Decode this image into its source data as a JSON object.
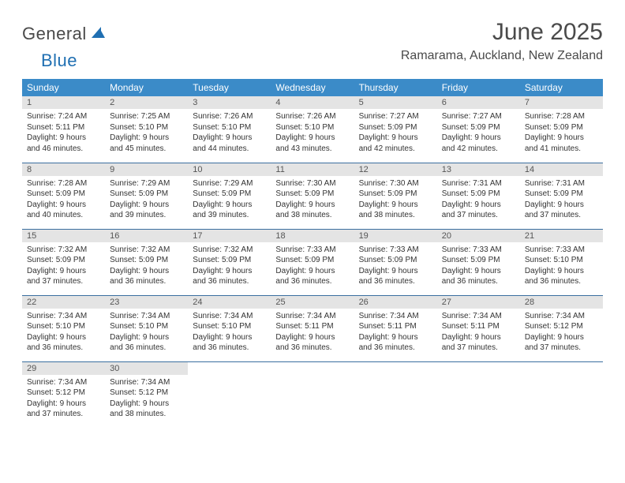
{
  "logo": {
    "text1": "General",
    "text2": "Blue",
    "shape_color": "#1f6fb2"
  },
  "title": "June 2025",
  "location": "Ramarama, Auckland, New Zealand",
  "header_bg": "#3b8bc8",
  "header_fg": "#ffffff",
  "daynum_bg": "#e4e4e4",
  "row_border": "#3b6fa0",
  "weekdays": [
    "Sunday",
    "Monday",
    "Tuesday",
    "Wednesday",
    "Thursday",
    "Friday",
    "Saturday"
  ],
  "weeks": [
    [
      {
        "n": "1",
        "sr": "7:24 AM",
        "ss": "5:11 PM",
        "dl": "9 hours and 46 minutes."
      },
      {
        "n": "2",
        "sr": "7:25 AM",
        "ss": "5:10 PM",
        "dl": "9 hours and 45 minutes."
      },
      {
        "n": "3",
        "sr": "7:26 AM",
        "ss": "5:10 PM",
        "dl": "9 hours and 44 minutes."
      },
      {
        "n": "4",
        "sr": "7:26 AM",
        "ss": "5:10 PM",
        "dl": "9 hours and 43 minutes."
      },
      {
        "n": "5",
        "sr": "7:27 AM",
        "ss": "5:09 PM",
        "dl": "9 hours and 42 minutes."
      },
      {
        "n": "6",
        "sr": "7:27 AM",
        "ss": "5:09 PM",
        "dl": "9 hours and 42 minutes."
      },
      {
        "n": "7",
        "sr": "7:28 AM",
        "ss": "5:09 PM",
        "dl": "9 hours and 41 minutes."
      }
    ],
    [
      {
        "n": "8",
        "sr": "7:28 AM",
        "ss": "5:09 PM",
        "dl": "9 hours and 40 minutes."
      },
      {
        "n": "9",
        "sr": "7:29 AM",
        "ss": "5:09 PM",
        "dl": "9 hours and 39 minutes."
      },
      {
        "n": "10",
        "sr": "7:29 AM",
        "ss": "5:09 PM",
        "dl": "9 hours and 39 minutes."
      },
      {
        "n": "11",
        "sr": "7:30 AM",
        "ss": "5:09 PM",
        "dl": "9 hours and 38 minutes."
      },
      {
        "n": "12",
        "sr": "7:30 AM",
        "ss": "5:09 PM",
        "dl": "9 hours and 38 minutes."
      },
      {
        "n": "13",
        "sr": "7:31 AM",
        "ss": "5:09 PM",
        "dl": "9 hours and 37 minutes."
      },
      {
        "n": "14",
        "sr": "7:31 AM",
        "ss": "5:09 PM",
        "dl": "9 hours and 37 minutes."
      }
    ],
    [
      {
        "n": "15",
        "sr": "7:32 AM",
        "ss": "5:09 PM",
        "dl": "9 hours and 37 minutes."
      },
      {
        "n": "16",
        "sr": "7:32 AM",
        "ss": "5:09 PM",
        "dl": "9 hours and 36 minutes."
      },
      {
        "n": "17",
        "sr": "7:32 AM",
        "ss": "5:09 PM",
        "dl": "9 hours and 36 minutes."
      },
      {
        "n": "18",
        "sr": "7:33 AM",
        "ss": "5:09 PM",
        "dl": "9 hours and 36 minutes."
      },
      {
        "n": "19",
        "sr": "7:33 AM",
        "ss": "5:09 PM",
        "dl": "9 hours and 36 minutes."
      },
      {
        "n": "20",
        "sr": "7:33 AM",
        "ss": "5:09 PM",
        "dl": "9 hours and 36 minutes."
      },
      {
        "n": "21",
        "sr": "7:33 AM",
        "ss": "5:10 PM",
        "dl": "9 hours and 36 minutes."
      }
    ],
    [
      {
        "n": "22",
        "sr": "7:34 AM",
        "ss": "5:10 PM",
        "dl": "9 hours and 36 minutes."
      },
      {
        "n": "23",
        "sr": "7:34 AM",
        "ss": "5:10 PM",
        "dl": "9 hours and 36 minutes."
      },
      {
        "n": "24",
        "sr": "7:34 AM",
        "ss": "5:10 PM",
        "dl": "9 hours and 36 minutes."
      },
      {
        "n": "25",
        "sr": "7:34 AM",
        "ss": "5:11 PM",
        "dl": "9 hours and 36 minutes."
      },
      {
        "n": "26",
        "sr": "7:34 AM",
        "ss": "5:11 PM",
        "dl": "9 hours and 36 minutes."
      },
      {
        "n": "27",
        "sr": "7:34 AM",
        "ss": "5:11 PM",
        "dl": "9 hours and 37 minutes."
      },
      {
        "n": "28",
        "sr": "7:34 AM",
        "ss": "5:12 PM",
        "dl": "9 hours and 37 minutes."
      }
    ],
    [
      {
        "n": "29",
        "sr": "7:34 AM",
        "ss": "5:12 PM",
        "dl": "9 hours and 37 minutes."
      },
      {
        "n": "30",
        "sr": "7:34 AM",
        "ss": "5:12 PM",
        "dl": "9 hours and 38 minutes."
      },
      null,
      null,
      null,
      null,
      null
    ]
  ],
  "labels": {
    "sunrise": "Sunrise:",
    "sunset": "Sunset:",
    "daylight": "Daylight:"
  }
}
